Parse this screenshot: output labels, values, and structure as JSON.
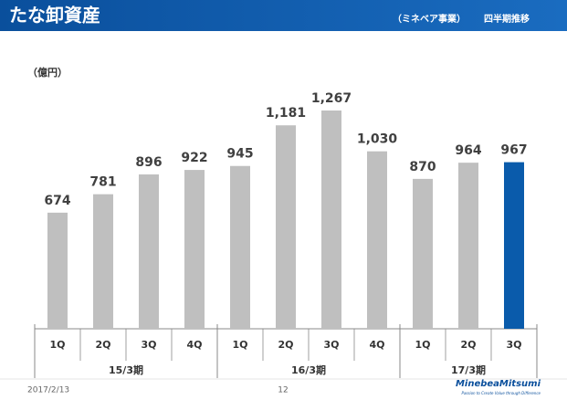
{
  "header": {
    "title": "たな卸資産",
    "segment": "（ミネベア事業）",
    "subtitle": "四半期推移"
  },
  "chart_data": {
    "type": "bar",
    "unit_label": "（億円）",
    "groups": [
      {
        "name": "15/3期",
        "categories": [
          "1Q",
          "2Q",
          "3Q",
          "4Q"
        ],
        "values": [
          674,
          781,
          896,
          922
        ],
        "value_labels": [
          "674",
          "781",
          "896",
          "922"
        ],
        "colors": [
          "#bfbfbf",
          "#bfbfbf",
          "#bfbfbf",
          "#bfbfbf"
        ]
      },
      {
        "name": "16/3期",
        "categories": [
          "1Q",
          "2Q",
          "3Q",
          "4Q"
        ],
        "values": [
          945,
          1181,
          1267,
          1030
        ],
        "value_labels": [
          "945",
          "1,181",
          "1,267",
          "1,030"
        ],
        "colors": [
          "#bfbfbf",
          "#bfbfbf",
          "#bfbfbf",
          "#bfbfbf"
        ]
      },
      {
        "name": "17/3期",
        "categories": [
          "1Q",
          "2Q",
          "3Q"
        ],
        "values": [
          870,
          964,
          967
        ],
        "value_labels": [
          "870",
          "964",
          "967"
        ],
        "colors": [
          "#bfbfbf",
          "#bfbfbf",
          "#0a5bab"
        ]
      }
    ]
  },
  "footer": {
    "date": "2017/2/13",
    "page": "12",
    "logo": "MinebeaMitsumi",
    "tagline": "Passion to Create Value through Difference"
  }
}
